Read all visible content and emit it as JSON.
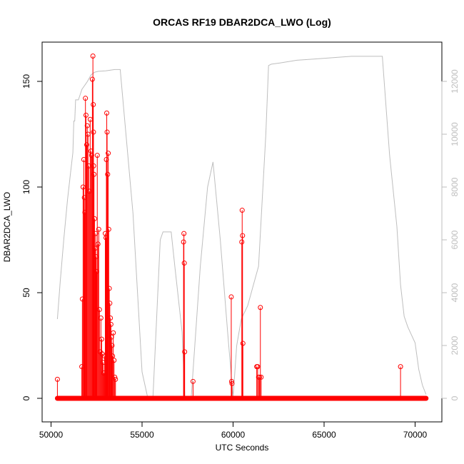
{
  "chart_data": {
    "type": "line",
    "title": "ORCAS RF19 DBAR2DCA_LWO (Log)",
    "xlabel": "UTC Seconds",
    "ylabel": "DBAR2DCA_LWO",
    "xlim": [
      50000,
      70800
    ],
    "ylim": [
      0,
      162
    ],
    "y2lim": [
      0,
      13000
    ],
    "x_ticks": [
      50000,
      55000,
      60000,
      65000,
      70000
    ],
    "y_ticks": [
      0,
      50,
      100,
      150
    ],
    "y2_ticks": [
      0,
      2000,
      4000,
      6000,
      8000,
      10000,
      12000
    ],
    "colors": {
      "primary": "#ff0000",
      "secondary": "#bebebe",
      "frame": "#000000"
    },
    "series": [
      {
        "axis": "left",
        "style": "points-and-lines",
        "color": "#ff0000",
        "x": [
          50350,
          51690,
          51720,
          51760,
          51800,
          51830,
          51860,
          51890,
          51920,
          51960,
          51990,
          52030,
          52070,
          52110,
          52150,
          52190,
          52230,
          52270,
          52300,
          52320,
          52330,
          52340,
          52360,
          52390,
          52420,
          52450,
          52480,
          52510,
          52540,
          52580,
          52620,
          52660,
          52700,
          52740,
          52780,
          52820,
          52860,
          52900,
          52940,
          52980,
          53020,
          53040,
          53060,
          53080,
          53110,
          53140,
          53170,
          53200,
          53230,
          53260,
          53290,
          53320,
          53350,
          53380,
          53420,
          53460,
          53500,
          53540,
          57280,
          57300,
          57320,
          57340,
          57800,
          59900,
          59920,
          59940,
          60480,
          60500,
          60520,
          60540,
          61300,
          61350,
          61400,
          61450,
          61500,
          61540,
          69200
        ],
        "y": [
          9,
          15,
          47,
          100,
          113,
          95,
          88,
          142,
          134,
          120,
          129,
          125,
          110,
          98,
          132,
          117,
          115,
          151,
          162,
          139,
          126,
          110,
          106,
          85,
          71,
          78,
          67,
          60,
          115,
          73,
          80,
          42,
          22,
          38,
          28,
          21,
          17,
          12,
          20,
          78,
          76,
          113,
          135,
          126,
          106,
          116,
          80,
          52,
          45,
          38,
          35,
          29,
          25,
          20,
          31,
          18,
          10,
          9,
          74,
          78,
          64,
          22,
          8,
          48,
          8,
          7,
          74,
          89,
          77,
          26,
          15,
          15,
          10,
          10,
          43,
          10,
          15
        ]
      },
      {
        "axis": "right",
        "style": "line",
        "color": "#bebebe",
        "x": [
          50350,
          50500,
          50700,
          50900,
          51100,
          51200,
          51250,
          51300,
          51350,
          51500,
          51600,
          51700,
          51800,
          51900,
          52000,
          52200,
          52400,
          52600,
          53000,
          53500,
          53800,
          54500,
          55000,
          55300,
          55600,
          56000,
          56150,
          56600,
          56800,
          57200,
          57350,
          57700,
          58200,
          58600,
          58900,
          59300,
          59700,
          60000,
          60200,
          60450,
          60800,
          61400,
          61800,
          61950,
          62100,
          62600,
          63500,
          64500,
          65500,
          66500,
          67500,
          68200,
          68600,
          69000,
          69200,
          69400,
          69600,
          69800,
          70000,
          70200,
          70400,
          70600
        ],
        "y": [
          3000,
          4400,
          6000,
          7500,
          8700,
          9300,
          10500,
          10500,
          11300,
          11300,
          11500,
          11700,
          11800,
          11900,
          12000,
          12250,
          12350,
          12380,
          12400,
          12450,
          12450,
          7000,
          1000,
          50,
          50,
          6000,
          6300,
          6300,
          5000,
          2500,
          50,
          50,
          5000,
          8000,
          8950,
          6000,
          2500,
          50,
          2000,
          3000,
          3500,
          5000,
          10000,
          12600,
          12650,
          12700,
          12800,
          12850,
          12900,
          12950,
          12950,
          12950,
          9200,
          6500,
          4300,
          3100,
          2700,
          2400,
          2100,
          1100,
          500,
          150
        ]
      },
      {
        "axis": "left",
        "style": "baseline-points",
        "color": "#ff0000",
        "x_range": [
          50350,
          70600
        ],
        "y": 0
      }
    ]
  }
}
